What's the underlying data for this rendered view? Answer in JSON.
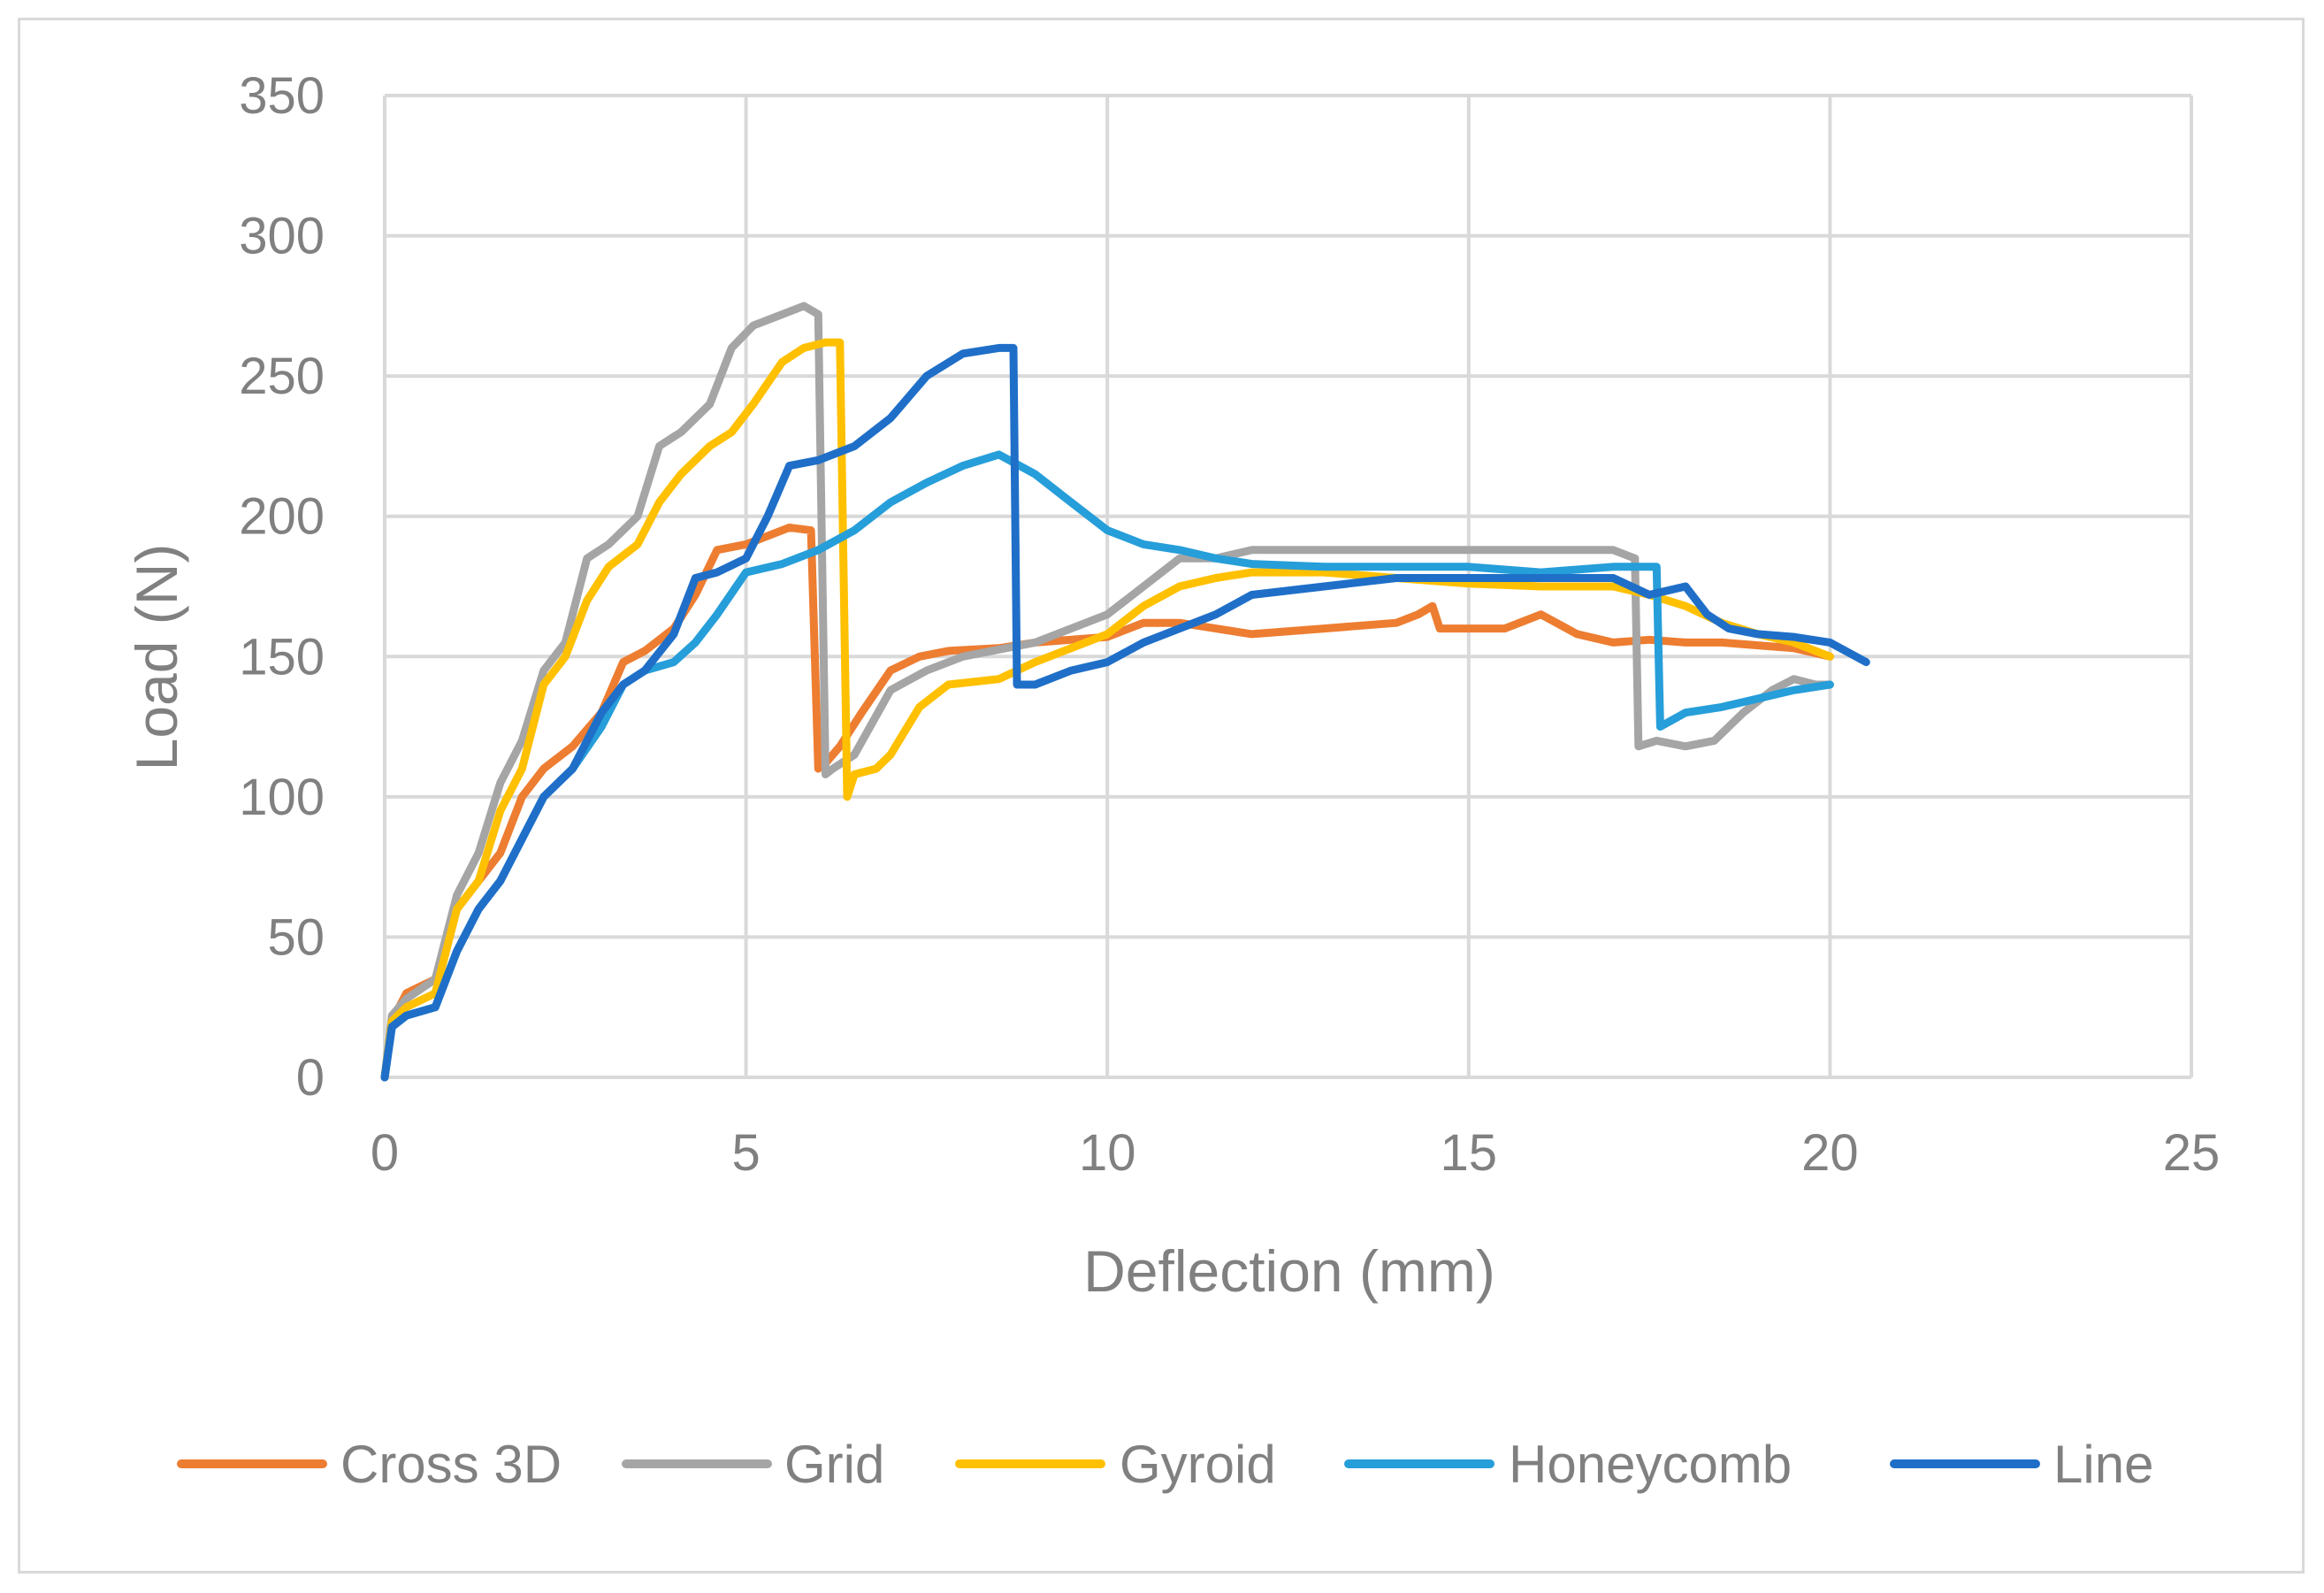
{
  "chart_data": {
    "type": "line",
    "title": "",
    "xlabel": "Deflection (mm)",
    "ylabel": "Load (N)",
    "xlim": [
      0,
      25
    ],
    "ylim": [
      0,
      350
    ],
    "xticks": [
      0,
      5,
      10,
      15,
      20,
      25
    ],
    "yticks": [
      0,
      50,
      100,
      150,
      200,
      250,
      300,
      350
    ],
    "grid": true,
    "legend_position": "bottom",
    "series": [
      {
        "name": "Cross 3D",
        "color": "#ED7D31",
        "x": [
          0,
          0.1,
          0.3,
          0.7,
          1.0,
          1.3,
          1.6,
          1.9,
          2.2,
          2.6,
          3.0,
          3.3,
          3.6,
          4.0,
          4.3,
          4.6,
          5.0,
          5.3,
          5.6,
          5.9,
          6.0,
          6.1,
          6.3,
          6.6,
          7.0,
          7.4,
          7.8,
          8.5,
          9.0,
          10.0,
          10.5,
          11.0,
          11.5,
          12.0,
          13.0,
          14.0,
          14.3,
          14.5,
          14.6,
          15.5,
          16.0,
          16.5,
          17.0,
          17.5,
          18.0,
          18.5,
          19.0,
          19.5,
          20.0
        ],
        "y": [
          0,
          20,
          30,
          35,
          60,
          70,
          80,
          100,
          110,
          118,
          130,
          148,
          152,
          160,
          172,
          188,
          190,
          193,
          196,
          195,
          110,
          112,
          118,
          130,
          145,
          150,
          152,
          153,
          155,
          157,
          162,
          162,
          160,
          158,
          160,
          162,
          165,
          168,
          160,
          160,
          165,
          158,
          155,
          156,
          155,
          155,
          154,
          153,
          150
        ]
      },
      {
        "name": "Grid",
        "color": "#A5A5A5",
        "x": [
          0,
          0.1,
          0.3,
          0.7,
          1.0,
          1.3,
          1.6,
          1.9,
          2.2,
          2.5,
          2.8,
          3.1,
          3.5,
          3.8,
          4.1,
          4.5,
          4.8,
          5.1,
          5.5,
          5.8,
          6.0,
          6.1,
          6.2,
          6.5,
          7.0,
          7.5,
          8.0,
          9.0,
          10.0,
          10.5,
          11.0,
          11.5,
          12.0,
          13.0,
          14.0,
          15.0,
          16.0,
          17.0,
          17.3,
          17.35,
          17.6,
          18.0,
          18.4,
          18.8,
          19.2,
          19.5,
          19.8,
          20.0
        ],
        "y": [
          0,
          22,
          28,
          35,
          65,
          80,
          105,
          120,
          145,
          155,
          185,
          190,
          200,
          225,
          230,
          240,
          260,
          268,
          272,
          275,
          272,
          108,
          110,
          115,
          138,
          145,
          150,
          155,
          165,
          175,
          185,
          185,
          188,
          188,
          188,
          188,
          188,
          188,
          185,
          118,
          120,
          118,
          120,
          130,
          138,
          142,
          140,
          140
        ]
      },
      {
        "name": "Gyroid",
        "color": "#FFC000",
        "x": [
          0,
          0.1,
          0.3,
          0.7,
          1.0,
          1.3,
          1.6,
          1.9,
          2.2,
          2.5,
          2.8,
          3.1,
          3.5,
          3.8,
          4.1,
          4.5,
          4.8,
          5.1,
          5.5,
          5.8,
          6.1,
          6.3,
          6.4,
          6.5,
          6.8,
          7.0,
          7.4,
          7.8,
          8.5,
          9.0,
          10.0,
          10.5,
          11.0,
          11.5,
          12.0,
          13.0,
          14.0,
          15.0,
          16.0,
          17.0,
          17.5,
          18.0,
          18.5,
          19.0,
          19.5,
          20.0
        ],
        "y": [
          0,
          20,
          25,
          30,
          60,
          70,
          95,
          110,
          140,
          150,
          170,
          182,
          190,
          205,
          215,
          225,
          230,
          240,
          255,
          260,
          262,
          262,
          100,
          108,
          110,
          115,
          132,
          140,
          142,
          148,
          158,
          168,
          175,
          178,
          180,
          180,
          178,
          176,
          175,
          175,
          172,
          168,
          162,
          158,
          155,
          150
        ]
      },
      {
        "name": "Honeycomb",
        "color": "#269ED9",
        "x": [
          0,
          0.1,
          0.3,
          0.7,
          1.0,
          1.3,
          1.6,
          1.9,
          2.2,
          2.6,
          3.0,
          3.3,
          3.6,
          4.0,
          4.3,
          4.6,
          5.0,
          5.5,
          6.0,
          6.5,
          7.0,
          7.5,
          8.0,
          8.5,
          9.0,
          9.5,
          10.0,
          10.5,
          11.0,
          11.5,
          12.0,
          13.0,
          14.0,
          15.0,
          16.0,
          17.0,
          17.6,
          17.65,
          18.0,
          18.5,
          19.0,
          19.5,
          20.0
        ],
        "y": [
          0,
          18,
          22,
          25,
          45,
          60,
          70,
          85,
          100,
          110,
          125,
          140,
          145,
          148,
          155,
          165,
          180,
          183,
          188,
          195,
          205,
          212,
          218,
          222,
          215,
          205,
          195,
          190,
          188,
          185,
          183,
          182,
          182,
          182,
          180,
          182,
          182,
          125,
          130,
          132,
          135,
          138,
          140
        ]
      },
      {
        "name": "Line",
        "color": "#1F6FC8",
        "x": [
          0,
          0.1,
          0.3,
          0.7,
          1.0,
          1.3,
          1.6,
          1.9,
          2.2,
          2.6,
          3.0,
          3.3,
          3.6,
          4.0,
          4.3,
          4.6,
          5.0,
          5.3,
          5.6,
          6.0,
          6.5,
          7.0,
          7.5,
          8.0,
          8.5,
          8.7,
          8.75,
          9.0,
          9.5,
          10.0,
          10.5,
          11.0,
          11.5,
          12.0,
          13.0,
          14.0,
          15.0,
          16.0,
          17.0,
          17.5,
          18.0,
          18.3,
          18.6,
          19.0,
          19.5,
          20.0,
          20.5
        ],
        "y": [
          0,
          18,
          22,
          25,
          45,
          60,
          70,
          85,
          100,
          110,
          130,
          140,
          145,
          158,
          178,
          180,
          185,
          200,
          218,
          220,
          225,
          235,
          250,
          258,
          260,
          260,
          140,
          140,
          145,
          148,
          155,
          160,
          165,
          172,
          175,
          178,
          178,
          178,
          178,
          172,
          175,
          165,
          160,
          158,
          157,
          155,
          148
        ]
      }
    ]
  }
}
